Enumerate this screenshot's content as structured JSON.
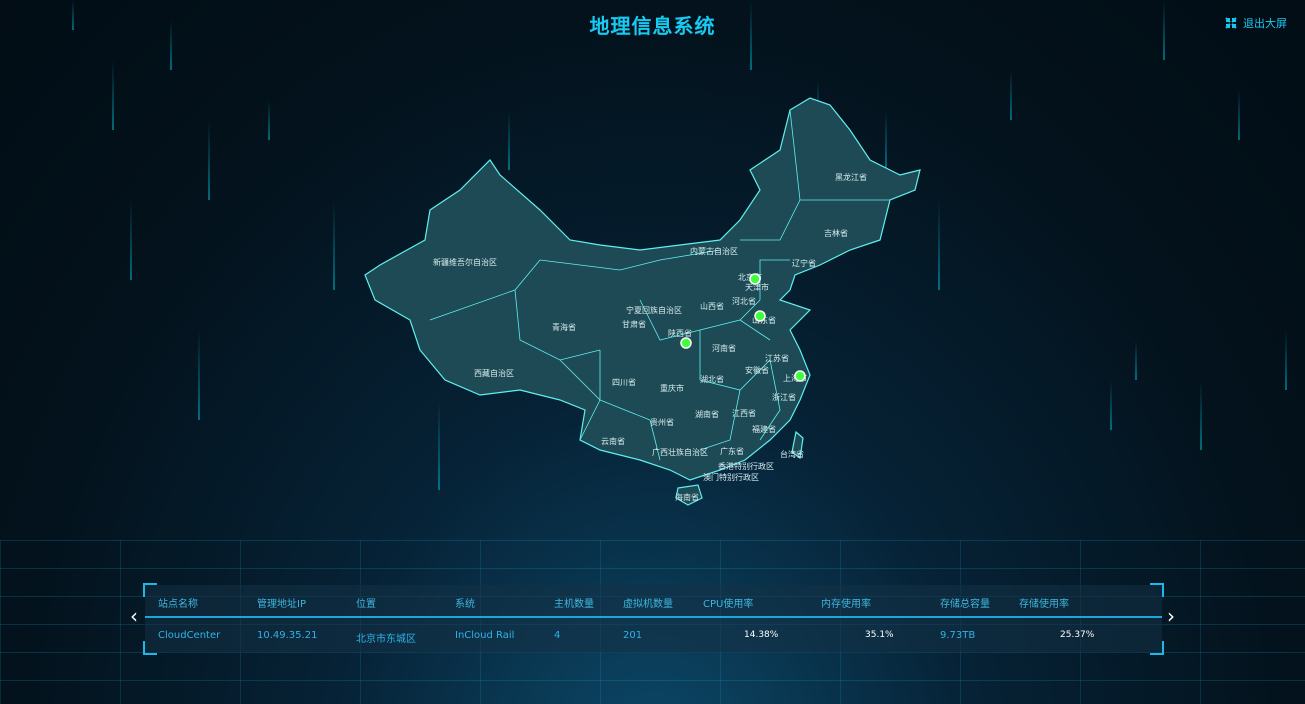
{
  "header": {
    "title": "地理信息系统",
    "exit_label": "退出大屏",
    "exit_icon": "exit-fullscreen-icon"
  },
  "colors": {
    "accent": "#18c9f2",
    "map_fill": "#1d4a54",
    "map_border": "#5ff0f0",
    "marker": "#3dff3d"
  },
  "map": {
    "provinces": [
      "新疆维吾尔自治区",
      "西藏自治区",
      "青海省",
      "甘肃省",
      "宁夏回族自治区",
      "陕西省",
      "内蒙古自治区",
      "黑龙江省",
      "吉林省",
      "辽宁省",
      "北京市",
      "天津市",
      "河北省",
      "山西省",
      "山东省",
      "河南省",
      "江苏省",
      "安徽省",
      "上海市",
      "浙江省",
      "湖北省",
      "重庆市",
      "四川省",
      "贵州省",
      "湖南省",
      "江西省",
      "福建省",
      "台湾省",
      "云南省",
      "广西壮族自治区",
      "广东省",
      "香港特别行政区",
      "澳门特别行政区",
      "海南省"
    ],
    "markers": [
      "北京市",
      "山东省",
      "陕西省",
      "上海市"
    ]
  },
  "table": {
    "headers": [
      "站点名称",
      "管理地址IP",
      "位置",
      "系统",
      "主机数量",
      "虚拟机数量",
      "CPU使用率",
      "内存使用率",
      "存储总容量",
      "存储使用率"
    ],
    "rows": [
      [
        "CloudCenter",
        "10.49.35.21",
        "北京市东城区",
        "InCloud Rail",
        "4",
        "201",
        "14.38%",
        "35.1%",
        "9.73TB",
        "25.37%"
      ]
    ]
  }
}
